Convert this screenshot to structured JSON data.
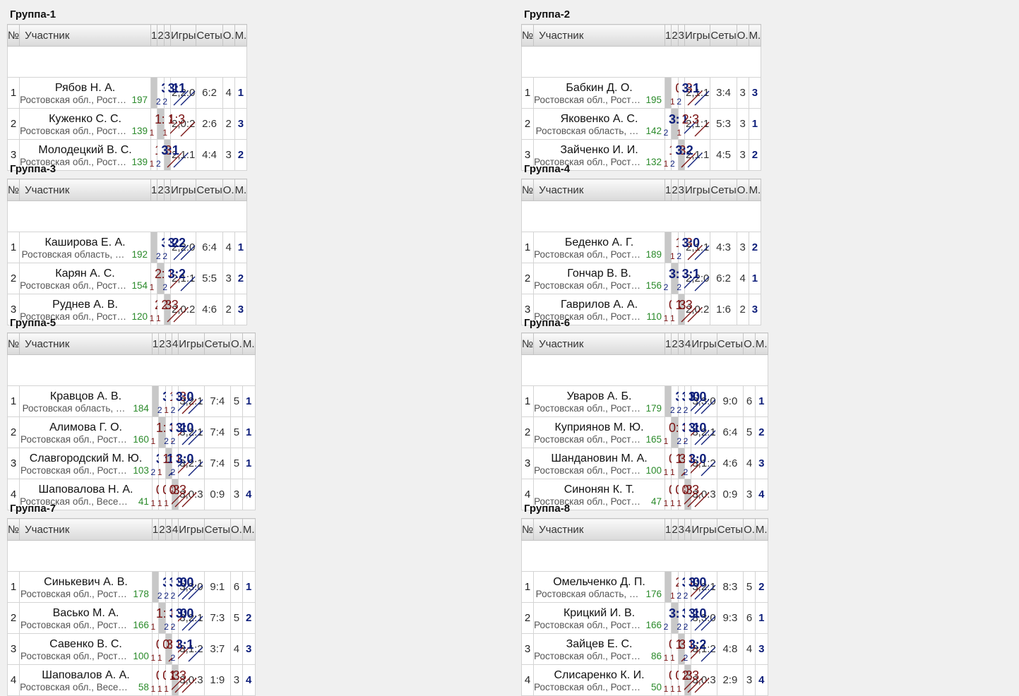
{
  "headers": {
    "no": "№",
    "participant": "Участник",
    "games": "Игры",
    "sets": "Сеты",
    "points": "О.",
    "place": "М."
  },
  "colors": {
    "win": "#0d1e7a",
    "lose": "#7a1212",
    "rating": "#2a8a2a",
    "self": "#c8c8c8"
  },
  "groups": [
    {
      "title": "Группа-1",
      "players": [
        {
          "n": "1",
          "name": "Рябов Н. А.",
          "region": "Ростовская обл., Рост…",
          "rating": "197",
          "res": [
            null,
            {
              "s": "3:1",
              "p": "2",
              "w": true
            },
            {
              "s": "3:1",
              "p": "2",
              "w": true
            }
          ],
          "games": "2,2:0",
          "sets": "6:2",
          "pts": "4",
          "place": "1"
        },
        {
          "n": "2",
          "name": "Куженко С. С.",
          "region": "Ростовская обл., Рост…",
          "rating": "139",
          "res": [
            {
              "s": "1:3",
              "p": "1",
              "w": false
            },
            null,
            {
              "s": "1:3",
              "p": "1",
              "w": false
            }
          ],
          "games": "2,0:2",
          "sets": "2:6",
          "pts": "2",
          "place": "3"
        },
        {
          "n": "3",
          "name": "Молодецкий В. С.",
          "region": "Ростовская обл., Рост…",
          "rating": "139",
          "res": [
            {
              "s": "1:3",
              "p": "1",
              "w": false
            },
            {
              "s": "3:1",
              "p": "2",
              "w": true
            },
            null
          ],
          "games": "2,1:1",
          "sets": "4:4",
          "pts": "3",
          "place": "2"
        }
      ]
    },
    {
      "title": "Группа-2",
      "players": [
        {
          "n": "1",
          "name": "Бабкин Д. О.",
          "region": "Ростовская обл., Рост…",
          "rating": "195",
          "res": [
            null,
            {
              "s": "0:3",
              "p": "1",
              "w": false
            },
            {
              "s": "3:1",
              "p": "2",
              "w": true
            }
          ],
          "games": "2,1:1",
          "sets": "3:4",
          "pts": "3",
          "place": "3"
        },
        {
          "n": "2",
          "name": "Яковенко А. С.",
          "region": "Ростовская область, …",
          "rating": "142",
          "res": [
            {
              "s": "3:0",
              "p": "2",
              "w": true
            },
            null,
            {
              "s": "2:3",
              "p": "1",
              "w": false
            }
          ],
          "games": "2,1:1",
          "sets": "5:3",
          "pts": "3",
          "place": "1"
        },
        {
          "n": "3",
          "name": "Зайченко И. И.",
          "region": "Ростовская обл., Рост…",
          "rating": "132",
          "res": [
            {
              "s": "1:3",
              "p": "1",
              "w": false
            },
            {
              "s": "3:2",
              "p": "2",
              "w": true
            },
            null
          ],
          "games": "2,1:1",
          "sets": "4:5",
          "pts": "3",
          "place": "2"
        }
      ]
    },
    {
      "title": "Группа-3",
      "players": [
        {
          "n": "1",
          "name": "Каширова Е. А.",
          "region": "Ростовская область, …",
          "rating": "192",
          "res": [
            null,
            {
              "s": "3:2",
              "p": "2",
              "w": true
            },
            {
              "s": "3:2",
              "p": "2",
              "w": true
            }
          ],
          "games": "2,2:0",
          "sets": "6:4",
          "pts": "4",
          "place": "1"
        },
        {
          "n": "2",
          "name": "Карян А. С.",
          "region": "Ростовская обл., Рост…",
          "rating": "154",
          "res": [
            {
              "s": "2:3",
              "p": "1",
              "w": false
            },
            null,
            {
              "s": "3:2",
              "p": "2",
              "w": true
            }
          ],
          "games": "2,1:1",
          "sets": "5:5",
          "pts": "3",
          "place": "2"
        },
        {
          "n": "3",
          "name": "Руднев А. В.",
          "region": "Ростовская обл., Рост…",
          "rating": "120",
          "res": [
            {
              "s": "2:3",
              "p": "1",
              "w": false
            },
            {
              "s": "2:3",
              "p": "1",
              "w": false
            },
            null
          ],
          "games": "2,0:2",
          "sets": "4:6",
          "pts": "2",
          "place": "3"
        }
      ]
    },
    {
      "title": "Группа-4",
      "players": [
        {
          "n": "1",
          "name": "Беденко А. Г.",
          "region": "Ростовская обл., Рост…",
          "rating": "189",
          "res": [
            null,
            {
              "s": "1:3",
              "p": "1",
              "w": false
            },
            {
              "s": "3:0",
              "p": "2",
              "w": true
            }
          ],
          "games": "2,1:1",
          "sets": "4:3",
          "pts": "3",
          "place": "2"
        },
        {
          "n": "2",
          "name": "Гончар В. В.",
          "region": "Ростовская обл., Рост…",
          "rating": "156",
          "res": [
            {
              "s": "3:1",
              "p": "2",
              "w": true
            },
            null,
            {
              "s": "3:1",
              "p": "2",
              "w": true
            }
          ],
          "games": "2,2:0",
          "sets": "6:2",
          "pts": "4",
          "place": "1"
        },
        {
          "n": "3",
          "name": "Гаврилов А. А.",
          "region": "Ростовская обл., Рост…",
          "rating": "110",
          "res": [
            {
              "s": "0:3",
              "p": "1",
              "w": false
            },
            {
              "s": "1:3",
              "p": "1",
              "w": false
            },
            null
          ],
          "games": "2,0:2",
          "sets": "1:6",
          "pts": "2",
          "place": "3"
        }
      ]
    },
    {
      "title": "Группа-5",
      "players": [
        {
          "n": "1",
          "name": "Кравцов А. В.",
          "region": "Ростовская область, …",
          "rating": "184",
          "res": [
            null,
            {
              "s": "3:1",
              "p": "2",
              "w": true
            },
            {
              "s": "1:3",
              "p": "1",
              "w": false
            },
            {
              "s": "3:0",
              "p": "2",
              "w": true
            }
          ],
          "games": "3,2:1",
          "sets": "7:4",
          "pts": "5",
          "place": "1"
        },
        {
          "n": "2",
          "name": "Алимова Г. О.",
          "region": "Ростовская обл., Рост…",
          "rating": "160",
          "res": [
            {
              "s": "1:3",
              "p": "1",
              "w": false
            },
            null,
            {
              "s": "3:1",
              "p": "2",
              "w": true
            },
            {
              "s": "3:0",
              "p": "2",
              "w": true
            }
          ],
          "games": "3,2:1",
          "sets": "7:4",
          "pts": "5",
          "place": "1"
        },
        {
          "n": "3",
          "name": "Славгородский М. Ю.",
          "region": "Ростовская обл., Рост…",
          "rating": "103",
          "res": [
            {
              "s": "3:1",
              "p": "2",
              "w": true
            },
            {
              "s": "1:3",
              "p": "1",
              "w": false
            },
            null,
            {
              "s": "3:0",
              "p": "2",
              "w": true
            }
          ],
          "games": "3,2:1",
          "sets": "7:4",
          "pts": "5",
          "place": "1"
        },
        {
          "n": "4",
          "name": "Шаповалова Н. А.",
          "region": "Ростовская обл., Весе…",
          "rating": "41",
          "res": [
            {
              "s": "0:3",
              "p": "1",
              "w": false
            },
            {
              "s": "0:3",
              "p": "1",
              "w": false
            },
            {
              "s": "0:3",
              "p": "1",
              "w": false
            },
            null
          ],
          "games": "3,0:3",
          "sets": "0:9",
          "pts": "3",
          "place": "4"
        }
      ]
    },
    {
      "title": "Группа-6",
      "players": [
        {
          "n": "1",
          "name": "Уваров А. Б.",
          "region": "Ростовская обл., Рост…",
          "rating": "179",
          "res": [
            null,
            {
              "s": "3:0",
              "p": "2",
              "w": true
            },
            {
              "s": "3:0",
              "p": "2",
              "w": true
            },
            {
              "s": "3:0",
              "p": "2",
              "w": true
            }
          ],
          "games": "3,3:0",
          "sets": "9:0",
          "pts": "6",
          "place": "1"
        },
        {
          "n": "2",
          "name": "Куприянов М. Ю.",
          "region": "Ростовская обл., Рост…",
          "rating": "165",
          "res": [
            {
              "s": "0:3",
              "p": "1",
              "w": false
            },
            null,
            {
              "s": "3:1",
              "p": "2",
              "w": true
            },
            {
              "s": "3:0",
              "p": "2",
              "w": true
            }
          ],
          "games": "3,2:1",
          "sets": "6:4",
          "pts": "5",
          "place": "2"
        },
        {
          "n": "3",
          "name": "Шандановин М. А.",
          "region": "Ростовская обл., Рост…",
          "rating": "100",
          "res": [
            {
              "s": "0:3",
              "p": "1",
              "w": false
            },
            {
              "s": "1:3",
              "p": "1",
              "w": false
            },
            null,
            {
              "s": "3:0",
              "p": "2",
              "w": true
            }
          ],
          "games": "3,1:2",
          "sets": "4:6",
          "pts": "4",
          "place": "3"
        },
        {
          "n": "4",
          "name": "Синонян К. Т.",
          "region": "Ростовская обл., Рост…",
          "rating": "47",
          "res": [
            {
              "s": "0:3",
              "p": "1",
              "w": false
            },
            {
              "s": "0:3",
              "p": "1",
              "w": false
            },
            {
              "s": "0:3",
              "p": "1",
              "w": false
            },
            null
          ],
          "games": "3,0:3",
          "sets": "0:9",
          "pts": "3",
          "place": "4"
        }
      ]
    },
    {
      "title": "Группа-7",
      "players": [
        {
          "n": "1",
          "name": "Синькевич А. В.",
          "region": "Ростовская обл., Рост…",
          "rating": "178",
          "res": [
            null,
            {
              "s": "3:1",
              "p": "2",
              "w": true
            },
            {
              "s": "3:0",
              "p": "2",
              "w": true
            },
            {
              "s": "3:0",
              "p": "2",
              "w": true
            }
          ],
          "games": "3,3:0",
          "sets": "9:1",
          "pts": "6",
          "place": "1"
        },
        {
          "n": "2",
          "name": "Васько М. А.",
          "region": "Ростовская обл., Рост…",
          "rating": "166",
          "res": [
            {
              "s": "1:3",
              "p": "1",
              "w": false
            },
            null,
            {
              "s": "3:0",
              "p": "2",
              "w": true
            },
            {
              "s": "3:0",
              "p": "2",
              "w": true
            }
          ],
          "games": "3,2:1",
          "sets": "7:3",
          "pts": "5",
          "place": "2"
        },
        {
          "n": "3",
          "name": "Савенко В. С.",
          "region": "Ростовская обл., Рост…",
          "rating": "100",
          "res": [
            {
              "s": "0:3",
              "p": "1",
              "w": false
            },
            {
              "s": "0:3",
              "p": "1",
              "w": false
            },
            null,
            {
              "s": "3:1",
              "p": "2",
              "w": true
            }
          ],
          "games": "3,1:2",
          "sets": "3:7",
          "pts": "4",
          "place": "3"
        },
        {
          "n": "4",
          "name": "Шаповалов А. А.",
          "region": "Ростовская обл., Весе…",
          "rating": "58",
          "res": [
            {
              "s": "0:3",
              "p": "1",
              "w": false
            },
            {
              "s": "0:3",
              "p": "1",
              "w": false
            },
            {
              "s": "1:3",
              "p": "1",
              "w": false
            },
            null
          ],
          "games": "3,0:3",
          "sets": "1:9",
          "pts": "3",
          "place": "4"
        }
      ]
    },
    {
      "title": "Группа-8",
      "players": [
        {
          "n": "1",
          "name": "Омельченко Д. П.",
          "region": "Ростовская область, …",
          "rating": "176",
          "res": [
            null,
            {
              "s": "2:3",
              "p": "1",
              "w": false
            },
            {
              "s": "3:0",
              "p": "2",
              "w": true
            },
            {
              "s": "3:0",
              "p": "2",
              "w": true
            }
          ],
          "games": "3,2:1",
          "sets": "8:3",
          "pts": "5",
          "place": "2"
        },
        {
          "n": "2",
          "name": "Крицкий И. В.",
          "region": "Ростовская обл., Рост…",
          "rating": "166",
          "res": [
            {
              "s": "3:2",
              "p": "2",
              "w": true
            },
            null,
            {
              "s": "3:1",
              "p": "2",
              "w": true
            },
            {
              "s": "3:0",
              "p": "2",
              "w": true
            }
          ],
          "games": "3,3:0",
          "sets": "9:3",
          "pts": "6",
          "place": "1"
        },
        {
          "n": "3",
          "name": "Зайцев Е. С.",
          "region": "Ростовская обл., Рост…",
          "rating": "86",
          "res": [
            {
              "s": "0:3",
              "p": "1",
              "w": false
            },
            {
              "s": "1:3",
              "p": "1",
              "w": false
            },
            null,
            {
              "s": "3:2",
              "p": "2",
              "w": true
            }
          ],
          "games": "3,1:2",
          "sets": "4:8",
          "pts": "4",
          "place": "3"
        },
        {
          "n": "4",
          "name": "Слисаренко К. И.",
          "region": "Ростовская обл., Рост…",
          "rating": "50",
          "res": [
            {
              "s": "0:3",
              "p": "1",
              "w": false
            },
            {
              "s": "0:3",
              "p": "1",
              "w": false
            },
            {
              "s": "2:3",
              "p": "1",
              "w": false
            },
            null
          ],
          "games": "3,0:3",
          "sets": "2:9",
          "pts": "3",
          "place": "4"
        }
      ]
    }
  ]
}
